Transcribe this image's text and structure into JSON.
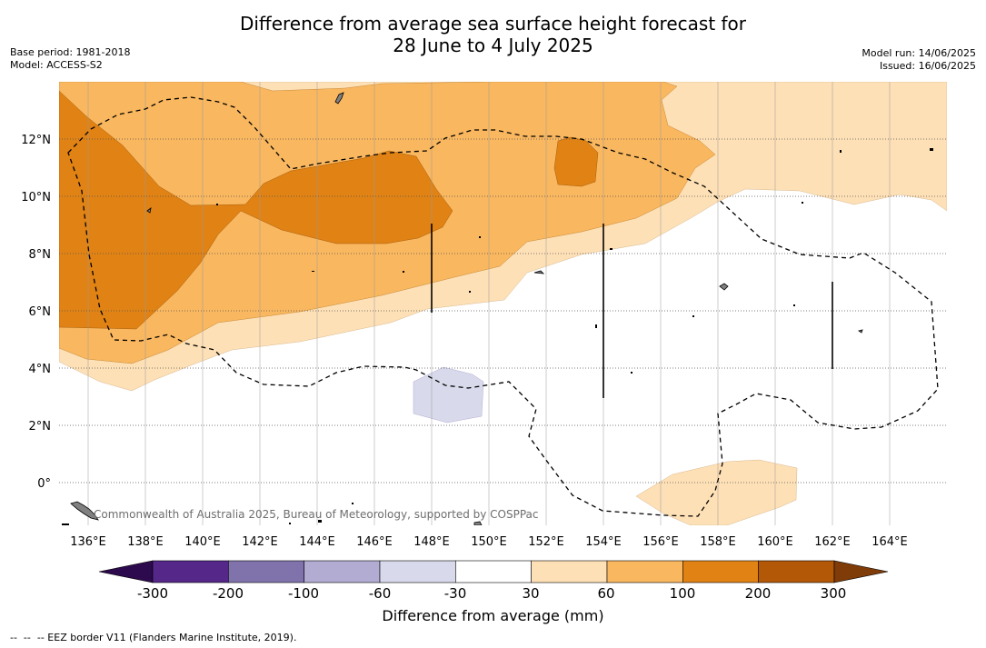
{
  "title_line1": "Difference from average sea surface height forecast for",
  "title_line2": "28 June to 4 July 2025",
  "meta_left": {
    "base_period": "Base period: 1981-2018",
    "model": "Model: ACCESS-S2"
  },
  "meta_right": {
    "model_run": "Model run: 14/06/2025",
    "issued": "Issued: 16/06/2025"
  },
  "copyright": "Commonwealth of Australia 2025, Bureau of Meteorology, supported by COSPPac",
  "lon_labels": [
    "136°E",
    "138°E",
    "140°E",
    "142°E",
    "144°E",
    "146°E",
    "148°E",
    "150°E",
    "152°E",
    "154°E",
    "156°E",
    "158°E",
    "160°E",
    "162°E",
    "164°E"
  ],
  "lat_labels": [
    "12°N",
    "10°N",
    "8°N",
    "6°N",
    "4°N",
    "2°N",
    "0°"
  ],
  "colorbar": {
    "title": "Difference from average (mm)",
    "tick_labels": [
      "-300",
      "-200",
      "-100",
      "-60",
      "-30",
      "30",
      "60",
      "100",
      "200",
      "300"
    ],
    "colors": {
      "below_-300": "#2d0a4e",
      "-300_to_-200": "#542788",
      "-200_to_-100": "#8073ac",
      "-100_to_-60": "#b2abd2",
      "-60_to_-30": "#d8daeb",
      "-30_to_30": "#ffffff",
      "30_to_60": "#fee0b6",
      "60_to_100": "#f9b75f",
      "100_to_200": "#e08214",
      "200_to_300": "#b35806",
      "above_300": "#7f3b08"
    }
  },
  "footnote": "--  --  -- EEZ border V11 (Flanders Marine Institute, 2019)."
}
